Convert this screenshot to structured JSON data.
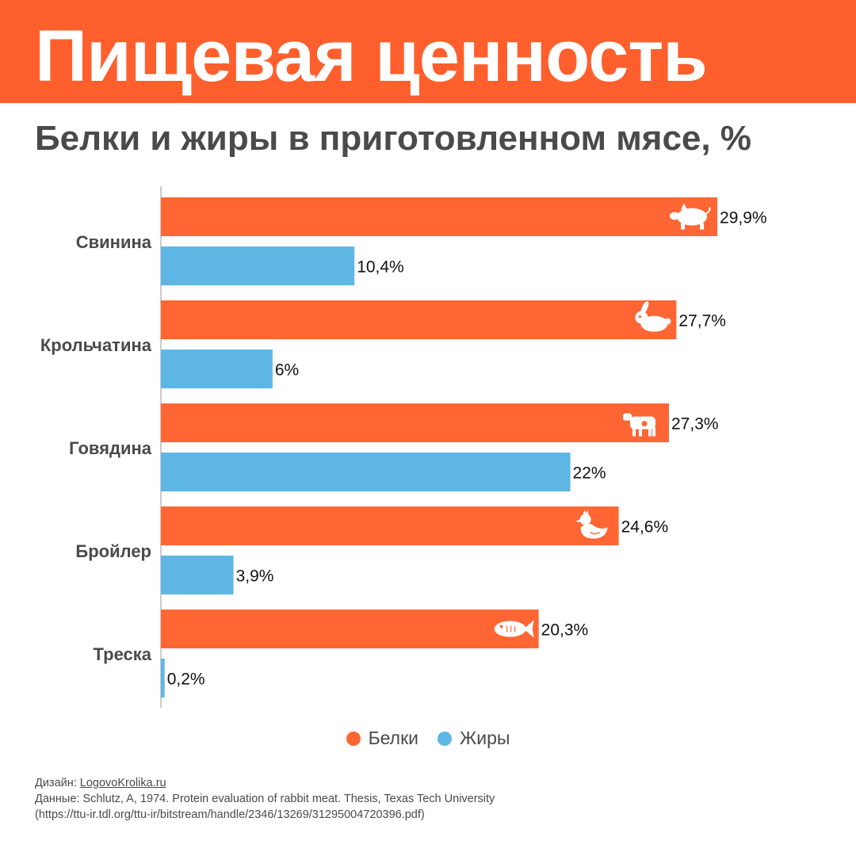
{
  "title": "Пищевая ценность",
  "subtitle": "Белки и жиры в приготовленном мясе, %",
  "colors": {
    "banner": "#ff5f2d",
    "protein": "#ff6633",
    "fat": "#5eb6e4"
  },
  "chart_data": {
    "type": "bar",
    "orientation": "horizontal",
    "categories": [
      "Свинина",
      "Крольчатина",
      "Говядина",
      "Бройлер",
      "Треска"
    ],
    "series": [
      {
        "name": "Белки",
        "color": "#ff6633",
        "values": [
          29.9,
          27.7,
          27.3,
          24.6,
          20.3
        ],
        "labels": [
          "29,9%",
          "27,7%",
          "27,3%",
          "24,6%",
          "20,3%"
        ],
        "icons": [
          "pig-icon",
          "rabbit-icon",
          "cow-icon",
          "chicken-icon",
          "fish-icon"
        ]
      },
      {
        "name": "Жиры",
        "color": "#5eb6e4",
        "values": [
          10.4,
          6,
          22,
          3.9,
          0.2
        ],
        "labels": [
          "10,4%",
          "6%",
          "22%",
          "3,9%",
          "0,2%"
        ]
      }
    ],
    "xlim": [
      0,
      30
    ],
    "legend_position": "bottom-center"
  },
  "legend": {
    "protein": "Белки",
    "fat": "Жиры"
  },
  "footer": {
    "design_prefix": "Дизайн: ",
    "design_link": "LogovoKrolika.ru",
    "data_line": "Данные: Schlutz, A, 1974. Protein evaluation of rabbit meat. Thesis, Texas Tech University",
    "url_line": "(https://ttu-ir.tdl.org/ttu-ir/bitstream/handle/2346/13269/31295004720396.pdf)"
  }
}
